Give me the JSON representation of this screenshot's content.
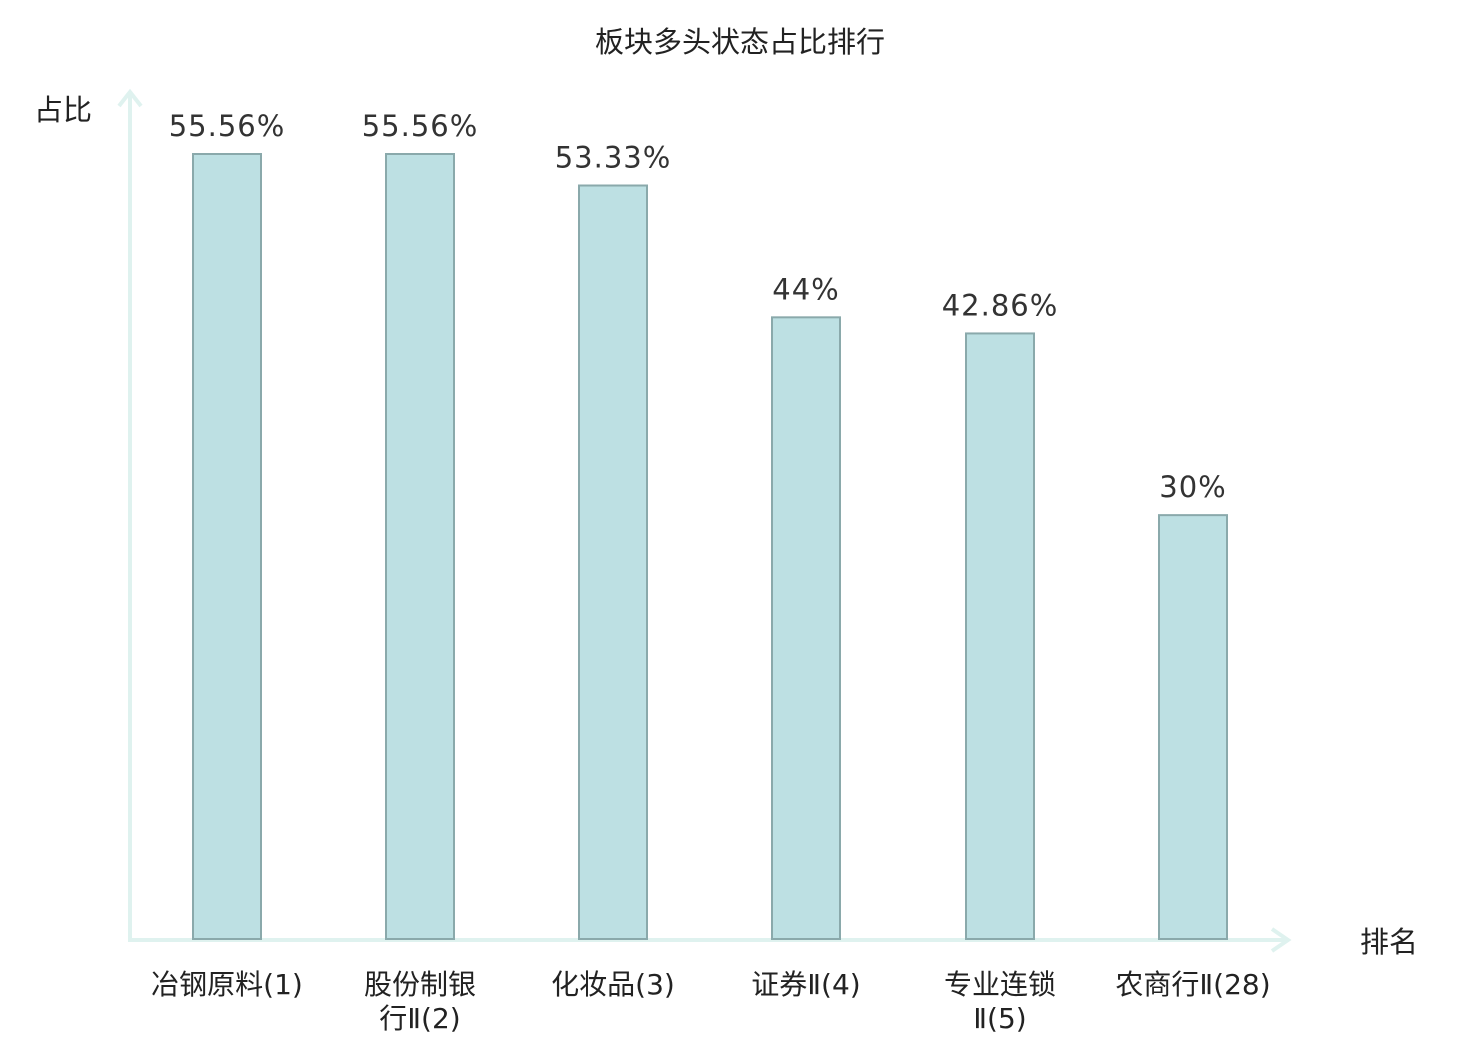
{
  "chart_data": {
    "type": "bar",
    "title": "板块多头状态占比排行",
    "ylabel": "占比",
    "xlabel": "排名",
    "categories": [
      [
        "冶钢原料(1)"
      ],
      [
        "股份制银",
        "行Ⅱ(2)"
      ],
      [
        "化妆品(3)"
      ],
      [
        "证券Ⅱ(4)"
      ],
      [
        "专业连锁",
        "Ⅱ(5)"
      ],
      [
        "农商行Ⅱ(28)"
      ]
    ],
    "values": [
      55.56,
      55.56,
      53.33,
      44,
      42.86,
      30
    ],
    "value_labels": [
      "55.56%",
      "55.56%",
      "53.33%",
      "44%",
      "42.86%",
      "30%"
    ],
    "highlight_index": 5,
    "ylim": [
      0,
      60
    ],
    "grid": false,
    "colors": {
      "bar_fill": "#bde0e3",
      "bar_stroke": "#8aa9ab",
      "axis": "#dff2ef",
      "text": "#222222",
      "highlight": "#e02020"
    }
  }
}
